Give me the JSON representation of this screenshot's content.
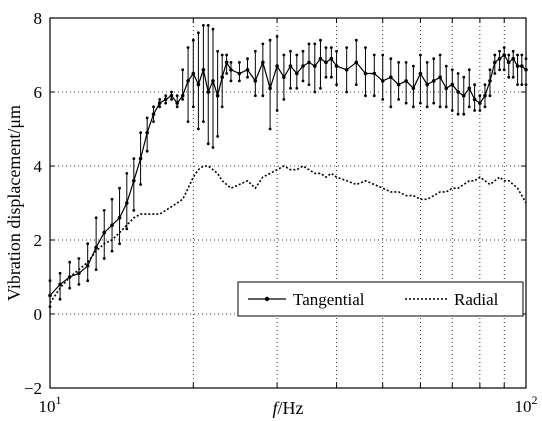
{
  "chart_data": {
    "type": "line",
    "title": "",
    "xlabel": {
      "symbol": "f",
      "unit": "/Hz"
    },
    "ylabel": "Vibration displacement/μm",
    "x_scale": "log",
    "xlim": [
      10,
      100
    ],
    "ylim": [
      -2,
      8
    ],
    "grid": true,
    "legend_position": "bottom-right",
    "xticks": [
      10,
      20,
      30,
      40,
      50,
      60,
      70,
      80,
      90,
      100
    ],
    "xtick_labels": [
      {
        "value": 10,
        "base": "10",
        "exp": "1"
      },
      {
        "value": 100,
        "base": "10",
        "exp": "2"
      }
    ],
    "yticks": [
      -2,
      0,
      2,
      4,
      6,
      8
    ],
    "ytick_labels": [
      "−2",
      "0",
      "2",
      "4",
      "6",
      "8"
    ],
    "series": [
      {
        "name": "Tangential",
        "style": "solid-with-markers",
        "color": "#000000",
        "x": [
          10,
          10.5,
          11,
          11.5,
          12,
          12.5,
          13,
          13.5,
          14,
          14.5,
          15,
          15.5,
          16,
          16.5,
          17,
          17.5,
          18,
          18.5,
          19,
          19.5,
          20,
          20.5,
          21,
          21.5,
          22,
          22.5,
          23,
          23.5,
          24,
          25,
          26,
          27,
          28,
          29,
          30,
          31,
          32,
          33,
          34,
          35,
          36,
          37,
          38,
          39,
          40,
          42,
          44,
          46,
          48,
          50,
          52,
          54,
          56,
          58,
          60,
          62,
          64,
          66,
          68,
          70,
          72,
          74,
          76,
          78,
          80,
          82,
          84,
          86,
          88,
          90,
          92,
          94,
          96,
          98,
          100
        ],
        "y": [
          0.5,
          0.8,
          1.0,
          1.1,
          1.3,
          1.8,
          2.2,
          2.4,
          2.6,
          3.0,
          3.6,
          4.2,
          4.9,
          5.4,
          5.7,
          5.8,
          5.9,
          5.7,
          5.9,
          6.3,
          6.5,
          6.2,
          6.6,
          6.0,
          6.3,
          5.9,
          6.4,
          6.8,
          6.6,
          6.5,
          6.6,
          6.3,
          6.8,
          6.1,
          6.7,
          6.4,
          6.7,
          6.5,
          6.7,
          6.8,
          6.7,
          6.9,
          6.8,
          6.9,
          6.7,
          6.6,
          6.8,
          6.5,
          6.5,
          6.3,
          6.4,
          6.2,
          6.3,
          6.1,
          6.5,
          6.2,
          6.3,
          6.4,
          6.1,
          6.2,
          6.0,
          5.9,
          6.1,
          5.8,
          5.7,
          5.9,
          6.3,
          6.8,
          6.9,
          7.0,
          6.8,
          6.9,
          6.7,
          6.7,
          6.6
        ],
        "ymin": [
          0.2,
          0.4,
          0.7,
          0.8,
          0.9,
          1.2,
          1.5,
          1.7,
          1.9,
          2.3,
          2.8,
          3.5,
          4.4,
          5.2,
          5.6,
          5.7,
          5.8,
          5.6,
          5.8,
          5.2,
          5.6,
          5.0,
          5.2,
          4.6,
          4.5,
          4.8,
          5.6,
          6.5,
          6.3,
          6.3,
          6.4,
          5.9,
          5.9,
          5.0,
          5.5,
          5.8,
          6.1,
          6.1,
          6.3,
          6.2,
          6.0,
          6.1,
          6.4,
          6.4,
          6.2,
          6.0,
          6.2,
          5.9,
          5.9,
          5.8,
          5.6,
          5.8,
          5.7,
          5.6,
          5.7,
          5.6,
          5.7,
          5.6,
          5.6,
          5.5,
          5.4,
          5.4,
          5.6,
          5.5,
          5.5,
          5.6,
          5.9,
          6.5,
          6.6,
          6.6,
          6.4,
          6.4,
          6.2,
          6.2,
          6.2
        ],
        "ymax": [
          0.9,
          1.1,
          1.4,
          1.5,
          1.9,
          2.6,
          2.8,
          3.1,
          3.4,
          3.8,
          4.2,
          4.9,
          5.3,
          5.6,
          5.8,
          5.9,
          6.0,
          5.9,
          6.6,
          7.2,
          7.4,
          7.6,
          7.8,
          7.8,
          7.7,
          7.1,
          7.0,
          7.0,
          6.8,
          6.8,
          6.9,
          7.1,
          7.3,
          7.4,
          7.5,
          7.0,
          7.1,
          7.0,
          7.1,
          7.3,
          7.3,
          7.4,
          7.2,
          7.2,
          7.1,
          7.2,
          7.4,
          7.2,
          7.0,
          7.0,
          6.9,
          6.8,
          6.8,
          6.7,
          7.0,
          6.8,
          6.9,
          7.0,
          6.7,
          6.6,
          6.5,
          6.4,
          6.6,
          6.2,
          5.9,
          6.2,
          6.6,
          7.0,
          7.1,
          7.2,
          7.0,
          7.1,
          7.0,
          7.0,
          6.9
        ]
      },
      {
        "name": "Radial",
        "style": "dotted",
        "color": "#000000",
        "x": [
          10,
          10.5,
          11,
          11.5,
          12,
          12.5,
          13,
          13.5,
          14,
          14.5,
          15,
          15.5,
          16,
          16.5,
          17,
          17.5,
          18,
          18.5,
          19,
          19.5,
          20,
          20.5,
          21,
          21.5,
          22,
          22.5,
          23,
          23.5,
          24,
          25,
          26,
          27,
          28,
          29,
          30,
          31,
          32,
          33,
          34,
          35,
          36,
          37,
          38,
          39,
          40,
          42,
          44,
          46,
          48,
          50,
          52,
          54,
          56,
          58,
          60,
          62,
          64,
          66,
          68,
          70,
          72,
          74,
          76,
          78,
          80,
          82,
          84,
          86,
          88,
          90,
          92,
          94,
          96,
          98,
          100
        ],
        "y": [
          0.3,
          0.7,
          1.0,
          1.2,
          1.4,
          1.7,
          1.9,
          2.0,
          2.2,
          2.4,
          2.6,
          2.7,
          2.7,
          2.7,
          2.7,
          2.8,
          2.9,
          3.0,
          3.1,
          3.4,
          3.7,
          3.9,
          4.0,
          4.0,
          3.9,
          3.8,
          3.6,
          3.5,
          3.4,
          3.5,
          3.6,
          3.4,
          3.7,
          3.8,
          3.9,
          4.0,
          3.9,
          3.9,
          4.0,
          3.9,
          3.8,
          3.8,
          3.7,
          3.8,
          3.7,
          3.6,
          3.5,
          3.6,
          3.5,
          3.4,
          3.3,
          3.3,
          3.2,
          3.2,
          3.1,
          3.1,
          3.2,
          3.3,
          3.3,
          3.4,
          3.4,
          3.5,
          3.6,
          3.6,
          3.7,
          3.6,
          3.5,
          3.6,
          3.7,
          3.6,
          3.6,
          3.5,
          3.4,
          3.2,
          3.0
        ]
      }
    ]
  }
}
